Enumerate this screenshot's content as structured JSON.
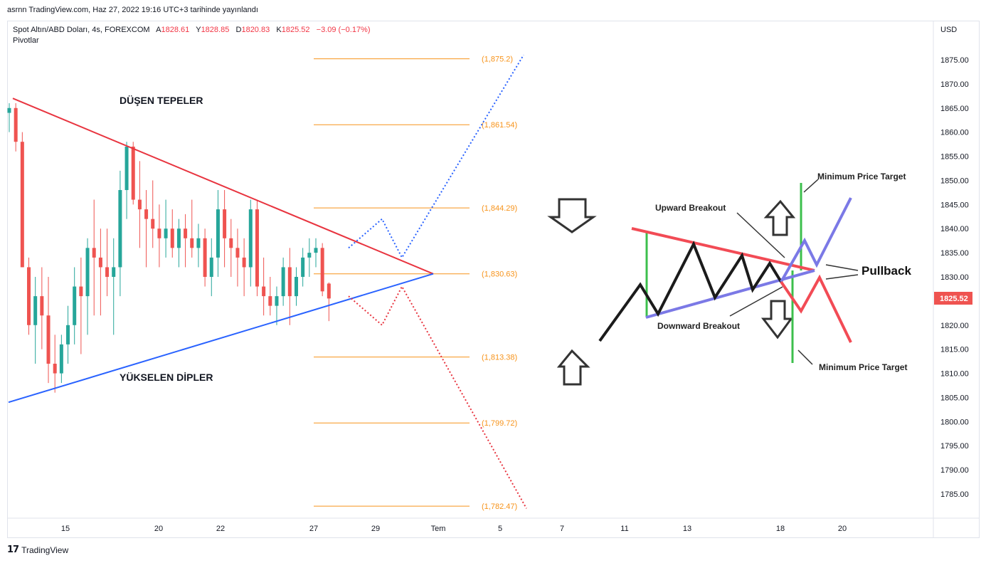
{
  "header": {
    "publisher_line": "asrnn TradingView.com, Haz 27, 2022 19:16 UTC+3 tarihinde yayınlandı"
  },
  "legend": {
    "symbol": "Spot Altın/ABD Doları, 4s, FOREXCOM",
    "open_label": "A",
    "open": "1828.61",
    "high_label": "Y",
    "high": "1828.85",
    "low_label": "D",
    "low": "1820.83",
    "close_label": "K",
    "close": "1825.52",
    "change": "−3.09 (−0.17%)",
    "indicator": "Pivotlar"
  },
  "footer": {
    "brand": "TradingView",
    "logo": "tv-logo-icon"
  },
  "colors": {
    "bull": "#26a69a",
    "bear": "#ef5350",
    "descending_line": "#e8343f",
    "ascending_line": "#2962ff",
    "pivot": "#f7931a",
    "price_tag": "#ef5350"
  },
  "chart_data": {
    "type": "candlestick",
    "instrument": "Spot Altın/ABD Doları",
    "timeframe": "4s",
    "price_scale": {
      "unit_label": "USD",
      "ticks": [
        "1875.00",
        "1870.00",
        "1865.00",
        "1860.00",
        "1855.00",
        "1850.00",
        "1845.00",
        "1840.00",
        "1835.00",
        "1830.00",
        "1825.00",
        "1820.00",
        "1815.00",
        "1810.00",
        "1805.00",
        "1800.00",
        "1795.00",
        "1790.00",
        "1785.00"
      ],
      "tick_values": [
        1875,
        1870,
        1865,
        1860,
        1855,
        1850,
        1845,
        1840,
        1835,
        1830,
        1825,
        1820,
        1815,
        1810,
        1805,
        1800,
        1795,
        1790,
        1785
      ],
      "ylim": [
        1782.5,
        1876.5
      ],
      "last_price": "1825.52",
      "last_price_value": 1825.52
    },
    "time_scale": {
      "labels": [
        "15",
        "20",
        "22",
        "27",
        "29",
        "Tem",
        "5",
        "7",
        "11",
        "13",
        "18",
        "20"
      ]
    },
    "pivots": [
      {
        "label": "(1,875.2)",
        "value": 1875.2
      },
      {
        "label": "(1,861.54)",
        "value": 1861.54
      },
      {
        "label": "(1,844.29)",
        "value": 1844.29
      },
      {
        "label": "(1,830.63)",
        "value": 1830.63
      },
      {
        "label": "(1,813.38)",
        "value": 1813.38
      },
      {
        "label": "(1,799.72)",
        "value": 1799.72
      },
      {
        "label": "(1,782.47)",
        "value": 1782.47
      }
    ],
    "candles": [
      [
        1864,
        1866,
        1860,
        1865
      ],
      [
        1865,
        1866,
        1856,
        1858
      ],
      [
        1858,
        1860,
        1832,
        1832
      ],
      [
        1832,
        1834,
        1818,
        1820
      ],
      [
        1820,
        1830,
        1812,
        1826
      ],
      [
        1826,
        1832,
        1815,
        1822
      ],
      [
        1822,
        1830,
        1808,
        1812
      ],
      [
        1812,
        1818,
        1806,
        1810
      ],
      [
        1810,
        1818,
        1808,
        1816
      ],
      [
        1816,
        1824,
        1812,
        1820
      ],
      [
        1820,
        1832,
        1816,
        1828
      ],
      [
        1828,
        1834,
        1814,
        1826
      ],
      [
        1826,
        1838,
        1818,
        1836
      ],
      [
        1836,
        1846,
        1822,
        1834
      ],
      [
        1834,
        1840,
        1822,
        1832
      ],
      [
        1832,
        1840,
        1826,
        1830
      ],
      [
        1830,
        1838,
        1818,
        1832
      ],
      [
        1832,
        1852,
        1826,
        1848
      ],
      [
        1848,
        1858,
        1842,
        1857
      ],
      [
        1857,
        1858,
        1845,
        1846
      ],
      [
        1846,
        1854,
        1836,
        1844
      ],
      [
        1844,
        1848,
        1832,
        1842
      ],
      [
        1842,
        1850,
        1836,
        1840
      ],
      [
        1840,
        1845,
        1832,
        1838
      ],
      [
        1838,
        1846,
        1834,
        1840
      ],
      [
        1840,
        1844,
        1834,
        1836
      ],
      [
        1836,
        1842,
        1832,
        1840
      ],
      [
        1840,
        1843,
        1832,
        1838
      ],
      [
        1838,
        1846,
        1834,
        1836
      ],
      [
        1836,
        1841,
        1832,
        1838
      ],
      [
        1838,
        1840,
        1828,
        1830
      ],
      [
        1830,
        1838,
        1826,
        1834
      ],
      [
        1834,
        1848,
        1830,
        1844
      ],
      [
        1844,
        1848,
        1832,
        1838
      ],
      [
        1838,
        1842,
        1830,
        1836
      ],
      [
        1836,
        1840,
        1828,
        1834
      ],
      [
        1834,
        1838,
        1826,
        1832
      ],
      [
        1832,
        1846,
        1828,
        1844
      ],
      [
        1844,
        1846,
        1826,
        1828
      ],
      [
        1828,
        1834,
        1822,
        1826
      ],
      [
        1826,
        1830,
        1822,
        1824
      ],
      [
        1824,
        1828,
        1820,
        1826
      ],
      [
        1826,
        1834,
        1824,
        1832
      ],
      [
        1832,
        1836,
        1820,
        1826
      ],
      [
        1826,
        1832,
        1824,
        1830
      ],
      [
        1830,
        1836,
        1828,
        1834
      ],
      [
        1834,
        1838,
        1830,
        1835
      ],
      [
        1835,
        1838,
        1832,
        1836
      ],
      [
        1836,
        1837,
        1826,
        1827
      ],
      [
        1828.61,
        1828.85,
        1820.83,
        1825.52
      ]
    ],
    "annotations": [
      {
        "text": "DÜŞEN TEPELER"
      },
      {
        "text": "YÜKSELEN DİPLER"
      }
    ],
    "trendlines": [
      {
        "name": "descending",
        "from": [
          0,
          1867
        ],
        "to": [
          "apex",
          1830.63
        ]
      },
      {
        "name": "ascending",
        "from": [
          0,
          1804
        ],
        "to": [
          "apex",
          1830.63
        ]
      }
    ],
    "projections": [
      {
        "color": "blue",
        "path": [
          1836,
          1842,
          1834,
          1876
        ]
      },
      {
        "color": "red",
        "path": [
          1826,
          1820,
          1828,
          1782
        ]
      }
    ],
    "diagram": {
      "labels": {
        "min_price_target_top": "Minimum Price Target",
        "upward_breakout": "Upward Breakout",
        "pullback": "Pullback",
        "downward_breakout": "Downward Breakout",
        "min_price_target_bottom": "Minimum Price Target"
      }
    }
  }
}
